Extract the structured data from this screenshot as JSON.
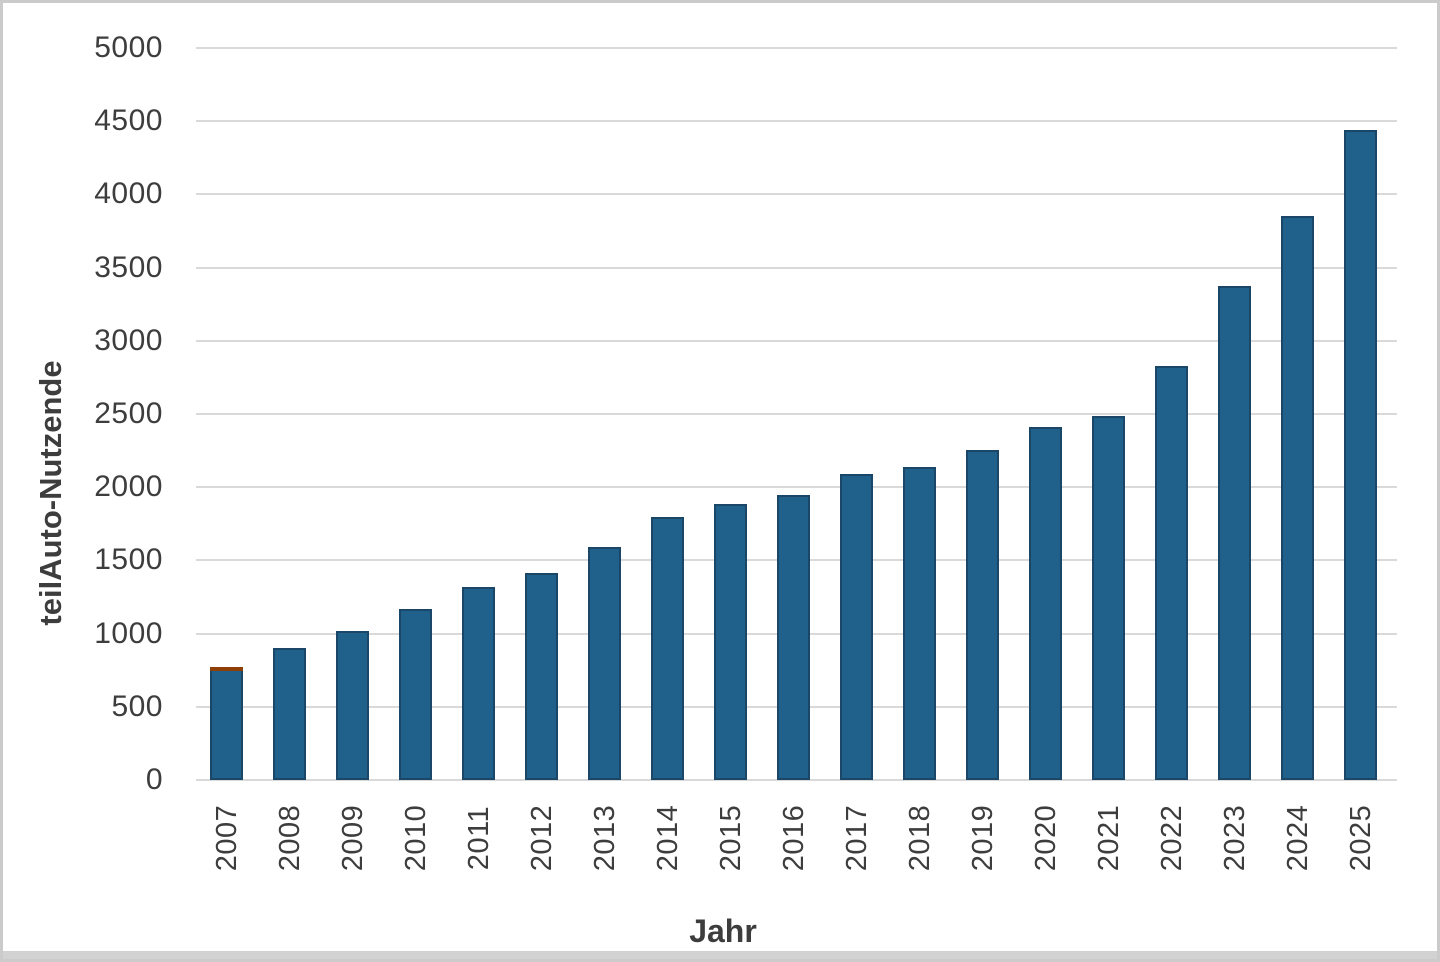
{
  "frame": {
    "border_color": "#cbcbcb",
    "bottom_strip_color": "#d2d2d2",
    "background": "#ffffff"
  },
  "chart_data": {
    "type": "bar",
    "title": "",
    "xlabel": "Jahr",
    "ylabel": "teilAuto-Nutzende",
    "categories": [
      "2007",
      "2008",
      "2009",
      "2010",
      "2011",
      "2012",
      "2013",
      "2014",
      "2015",
      "2016",
      "2017",
      "2018",
      "2019",
      "2020",
      "2021",
      "2022",
      "2023",
      "2024",
      "2025"
    ],
    "series": [
      {
        "name": "",
        "color": "#20618C",
        "border_color": "#1A4668",
        "values": [
          745,
          900,
          1015,
          1165,
          1320,
          1415,
          1590,
          1795,
          1885,
          1950,
          2090,
          2140,
          2255,
          2410,
          2485,
          2830,
          3375,
          3850,
          4440
        ]
      },
      {
        "name": "",
        "color": "#C2590F",
        "border_color": "#8F3E08",
        "values": [
          20,
          0,
          0,
          0,
          0,
          0,
          0,
          0,
          0,
          0,
          0,
          0,
          0,
          0,
          0,
          0,
          0,
          0,
          0
        ]
      }
    ],
    "stacked": true,
    "ylim": [
      0,
      5000
    ],
    "yticks": [
      0,
      500,
      1000,
      1500,
      2000,
      2500,
      3000,
      3500,
      4000,
      4500,
      5000
    ],
    "grid": true,
    "gridline_color": "#d9d9d9",
    "tick_label_color": "#3d3d3d",
    "axis_title_color": "#3d3d3d",
    "legend": "none"
  }
}
